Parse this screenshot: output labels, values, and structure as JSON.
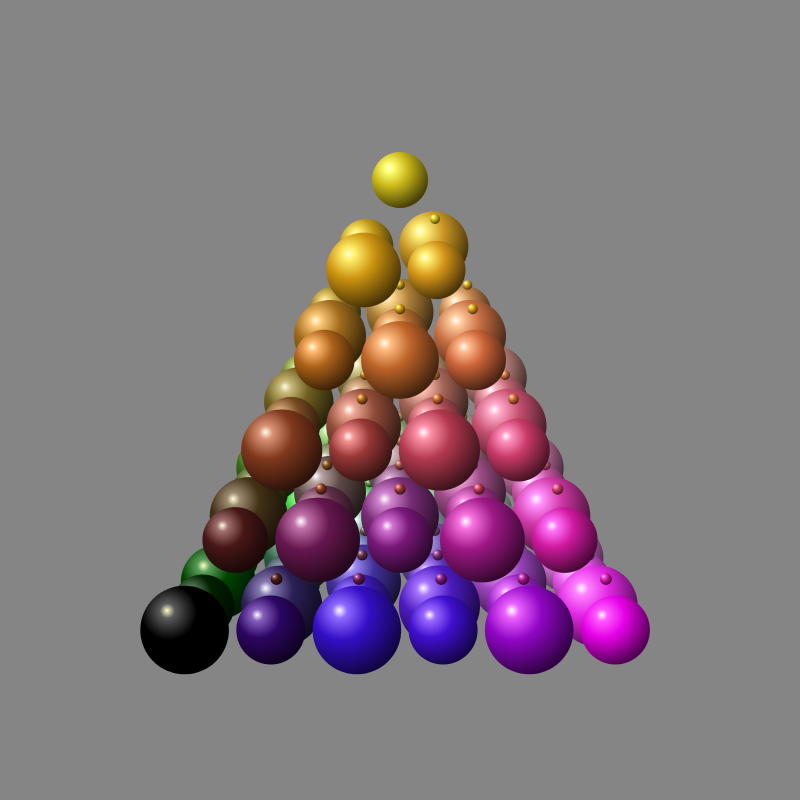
{
  "scene": {
    "description_name": "rgb-color-sphere-pyramid",
    "background_color": "#858585",
    "light_direction": "upper-left",
    "sphere_colors_sample": [
      "#ffff00",
      "#ff8000",
      "#ff0000",
      "#00ff00",
      "#0000ff",
      "#ff00ff",
      "#000000",
      "#ffffff",
      "#00ffff"
    ]
  }
}
